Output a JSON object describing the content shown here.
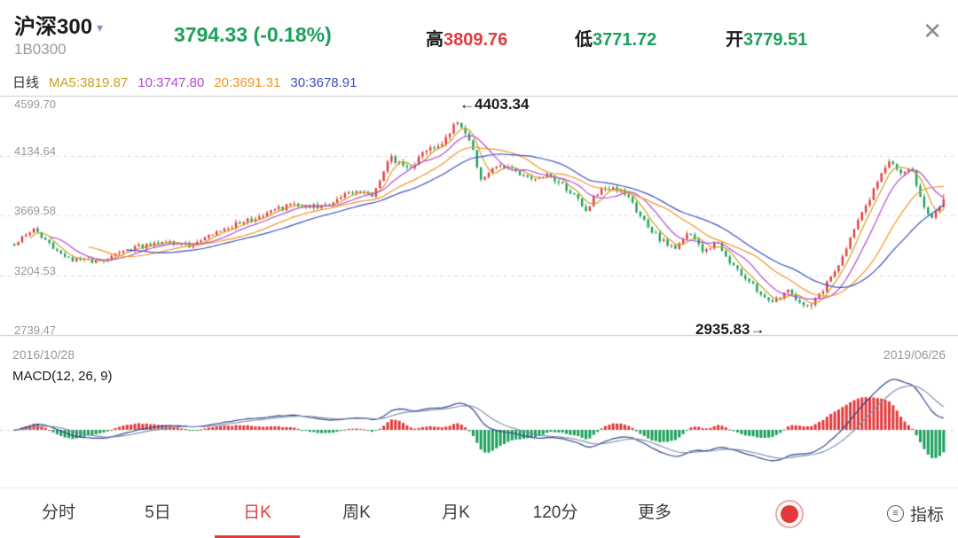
{
  "header": {
    "title": "沪深300",
    "caret_icon": "▾",
    "code": "1B0300",
    "last_price": "3794.33 (-0.18%)",
    "high_label": "高",
    "high_value": "3809.76",
    "low_label": "低",
    "low_value": "3771.72",
    "open_label": "开",
    "open_value": "3779.51",
    "close_icon": "✕"
  },
  "ma_row": {
    "period_label": "日线",
    "ma5_label": "MA5:3819.87",
    "ma10_label": "10:3747.80",
    "ma20_label": "20:3691.31",
    "ma30_label": "30:3678.91"
  },
  "colors": {
    "up": "#e23b3c",
    "down": "#1aa15a",
    "ma5": "#c9a21f",
    "ma10": "#b44bd6",
    "ma20": "#f39423",
    "ma30": "#3b50c1",
    "dif": "#33418f",
    "dea": "#8091ad",
    "grid": "#dddddd"
  },
  "chart_data": {
    "type": "candlestick",
    "symbol": "沪深300",
    "interval": "日K",
    "x_start": "2016/10/28",
    "x_end": "2019/06/26",
    "y_ticks": [
      "4599.70",
      "4134.64",
      "3669.58",
      "3204.53",
      "2739.47"
    ],
    "y_max": 4599.7,
    "y_min": 2739.47,
    "peak_annotation": "←4403.34",
    "peak_value": 4403.34,
    "peak_t": 0.475,
    "trough_annotation": "2935.83→",
    "trough_value": 2935.83,
    "trough_t": 0.856,
    "last_close": 3794.33,
    "num_candles": 240,
    "ma_periods": [
      5,
      10,
      20,
      30
    ],
    "control_points": [
      [
        0.0,
        3450
      ],
      [
        0.022,
        3560
      ],
      [
        0.055,
        3330
      ],
      [
        0.09,
        3315
      ],
      [
        0.13,
        3420
      ],
      [
        0.165,
        3455
      ],
      [
        0.19,
        3430
      ],
      [
        0.225,
        3565
      ],
      [
        0.26,
        3650
      ],
      [
        0.3,
        3760
      ],
      [
        0.33,
        3730
      ],
      [
        0.36,
        3860
      ],
      [
        0.385,
        3830
      ],
      [
        0.405,
        4120
      ],
      [
        0.425,
        4040
      ],
      [
        0.445,
        4180
      ],
      [
        0.465,
        4260
      ],
      [
        0.475,
        4380
      ],
      [
        0.488,
        4290
      ],
      [
        0.503,
        3940
      ],
      [
        0.52,
        4070
      ],
      [
        0.54,
        4010
      ],
      [
        0.558,
        3930
      ],
      [
        0.575,
        3990
      ],
      [
        0.6,
        3840
      ],
      [
        0.615,
        3710
      ],
      [
        0.632,
        3900
      ],
      [
        0.648,
        3865
      ],
      [
        0.662,
        3810
      ],
      [
        0.675,
        3640
      ],
      [
        0.695,
        3480
      ],
      [
        0.712,
        3420
      ],
      [
        0.727,
        3540
      ],
      [
        0.742,
        3390
      ],
      [
        0.757,
        3460
      ],
      [
        0.772,
        3290
      ],
      [
        0.788,
        3180
      ],
      [
        0.803,
        3060
      ],
      [
        0.818,
        2995
      ],
      [
        0.832,
        3090
      ],
      [
        0.846,
        2985
      ],
      [
        0.856,
        2960
      ],
      [
        0.87,
        3090
      ],
      [
        0.885,
        3260
      ],
      [
        0.9,
        3500
      ],
      [
        0.916,
        3730
      ],
      [
        0.93,
        3960
      ],
      [
        0.944,
        4100
      ],
      [
        0.955,
        3985
      ],
      [
        0.964,
        4070
      ],
      [
        0.976,
        3790
      ],
      [
        0.986,
        3645
      ],
      [
        0.995,
        3730
      ],
      [
        1.0,
        3794
      ]
    ],
    "macd": {
      "label": "MACD(12, 26, 9)",
      "fast": 12,
      "slow": 26,
      "signal": 9
    }
  },
  "tabbar": {
    "tabs": [
      {
        "label": "分时",
        "active": false
      },
      {
        "label": "5日",
        "active": false
      },
      {
        "label": "日K",
        "active": true
      },
      {
        "label": "周K",
        "active": false
      },
      {
        "label": "月K",
        "active": false
      },
      {
        "label": "120分",
        "active": false
      },
      {
        "label": "更多",
        "active": false
      }
    ],
    "indicator_icon_glyph": "≡",
    "indicator_label": "指标"
  }
}
